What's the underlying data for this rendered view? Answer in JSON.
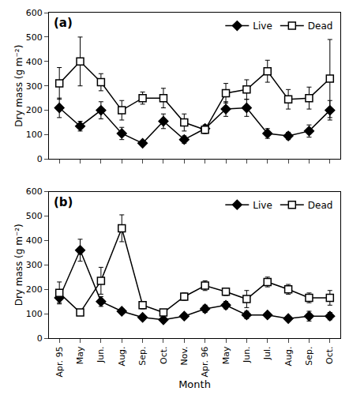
{
  "chart_data": [
    {
      "type": "line",
      "title": "(a)",
      "categories": [
        "Apr. 95",
        "May",
        "Jun.",
        "Aug.",
        "Sep.",
        "Oct.",
        "Nov.",
        "Apr. 96",
        "May",
        "Jun.",
        "Jul.",
        "Aug.",
        "Sep.",
        "Oct."
      ],
      "series": [
        {
          "name": "Live",
          "color": "#000000",
          "marker": "diamond",
          "values": [
            210,
            135,
            200,
            105,
            65,
            155,
            80,
            125,
            205,
            210,
            105,
            95,
            115,
            200
          ],
          "errors": [
            40,
            20,
            35,
            25,
            8,
            30,
            15,
            15,
            30,
            35,
            20,
            15,
            25,
            40
          ]
        },
        {
          "name": "Dead",
          "color": "#000000",
          "marker": "open_square",
          "values": [
            310,
            400,
            315,
            200,
            250,
            250,
            150,
            120,
            270,
            285,
            360,
            245,
            250,
            330
          ],
          "errors": [
            65,
            100,
            35,
            40,
            25,
            40,
            35,
            15,
            40,
            40,
            45,
            40,
            45,
            160
          ]
        }
      ],
      "ylabel": "Dry mass (g m⁻²)",
      "ylim": [
        0,
        600
      ],
      "yticks": [
        0,
        100,
        200,
        300,
        400,
        500,
        600
      ],
      "legend": "upper right",
      "grid": false,
      "tick_labels": "y"
    },
    {
      "type": "line",
      "title": "(b)",
      "categories": [
        "Apr. 95",
        "May",
        "Jun.",
        "Aug.",
        "Sep.",
        "Oct.",
        "Nov.",
        "Apr. 96",
        "May",
        "Jun.",
        "Jul.",
        "Aug.",
        "Sep.",
        "Oct."
      ],
      "series": [
        {
          "name": "Live",
          "color": "#000000",
          "marker": "diamond",
          "values": [
            165,
            360,
            150,
            110,
            85,
            75,
            90,
            120,
            135,
            95,
            95,
            80,
            90,
            90
          ],
          "errors": [
            20,
            45,
            20,
            10,
            10,
            10,
            10,
            15,
            15,
            15,
            10,
            10,
            20,
            15
          ]
        },
        {
          "name": "Dead",
          "color": "#000000",
          "marker": "open_square",
          "values": [
            185,
            105,
            235,
            450,
            135,
            105,
            170,
            215,
            190,
            160,
            230,
            200,
            165,
            165
          ],
          "errors": [
            45,
            10,
            55,
            55,
            15,
            10,
            15,
            20,
            15,
            35,
            20,
            20,
            20,
            30
          ]
        }
      ],
      "xlabel": "Month",
      "ylabel": "Dry mass (g m⁻²)",
      "ylim": [
        0,
        600
      ],
      "yticks": [
        0,
        100,
        200,
        300,
        400,
        500,
        600
      ],
      "legend": "upper right",
      "grid": false
    }
  ]
}
